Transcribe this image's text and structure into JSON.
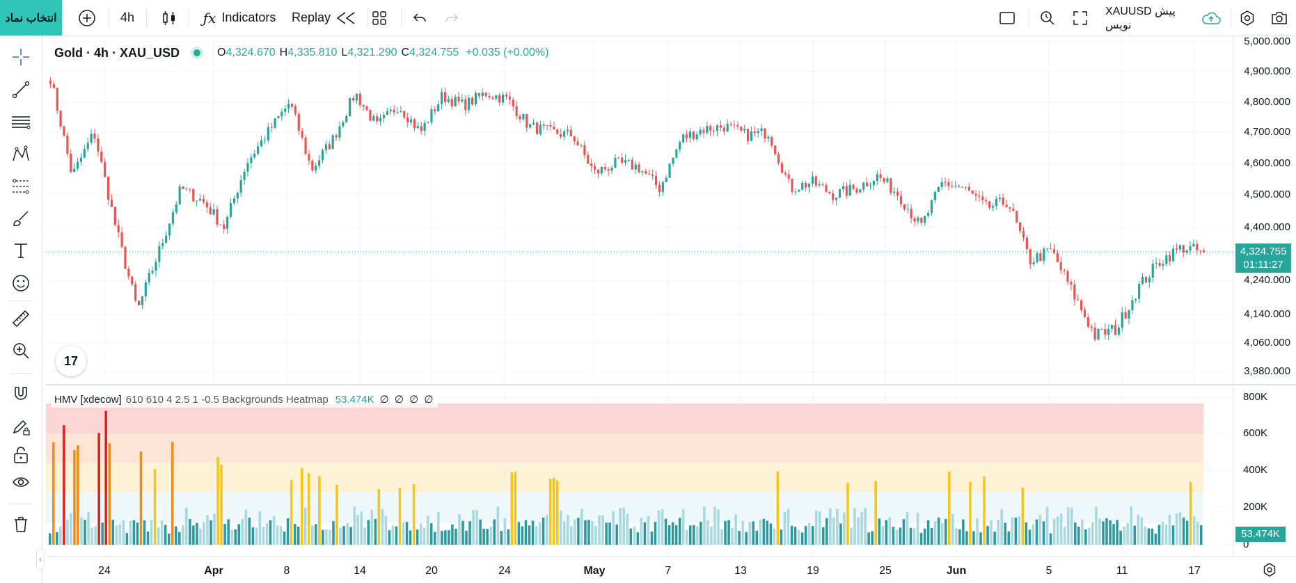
{
  "toolbar": {
    "symbol_search_label": "انتخاب نماد",
    "interval_label": "4h",
    "indicators_label": "Indicators",
    "replay_label": "Replay",
    "symbol_right_label": "XAUUSD پیش نویس"
  },
  "legend": {
    "title": "Gold · 4h · XAU_USD",
    "open_label": "O",
    "open": "4,324.670",
    "high_label": "H",
    "high": "4,335.810",
    "low_label": "L",
    "low": "4,321.290",
    "close_label": "C",
    "close": "4,324.755",
    "change": "+0.035 (+0.00%)"
  },
  "indicator": {
    "name": "HMV [xdecow]",
    "params": "610 610 4 2.5 1 -0.5 Backgrounds Heatmap",
    "value": "53.474K",
    "extra_values": "∅ ∅ ∅ ∅",
    "tag": "53.474K"
  },
  "price_axis": {
    "labels": [
      "5,000.000",
      "4,900.000",
      "4,800.000",
      "4,700.000",
      "4,600.000",
      "4,500.000",
      "4,400.000",
      "4,240.000",
      "4,140.000",
      "4,060.000",
      "3,980.000"
    ],
    "last_price": "4,324.755",
    "countdown": "01:11:27"
  },
  "volume_axis": {
    "labels": [
      "800K",
      "600K",
      "400K",
      "200K",
      "0"
    ]
  },
  "time_axis": {
    "labels": [
      {
        "text": "24",
        "bold": false
      },
      {
        "text": "Apr",
        "bold": true
      },
      {
        "text": "8",
        "bold": false
      },
      {
        "text": "14",
        "bold": false
      },
      {
        "text": "20",
        "bold": false
      },
      {
        "text": "24",
        "bold": false
      },
      {
        "text": "May",
        "bold": true
      },
      {
        "text": "7",
        "bold": false
      },
      {
        "text": "13",
        "bold": false
      },
      {
        "text": "19",
        "bold": false
      },
      {
        "text": "25",
        "bold": false
      },
      {
        "text": "Jun",
        "bold": true
      },
      {
        "text": "5",
        "bold": false
      },
      {
        "text": "11",
        "bold": false
      },
      {
        "text": "17",
        "bold": false
      }
    ]
  },
  "logo_text": "17",
  "colors": {
    "up": "#26a69a",
    "down": "#ef5350",
    "accent": "#2ec4b6",
    "heat_extreme": "#fcd5d5",
    "heat_high": "#fde4d4",
    "heat_medium": "#fdf1d6",
    "heat_normal": "#eef7fa",
    "vol_low": "#a8d8e0",
    "vol_normal": "#2a9aa0",
    "vol_medium": "#f5c518",
    "vol_high": "#f08c1a",
    "vol_extreme": "#e02020"
  },
  "chart_data": [
    {
      "type": "candlestick",
      "title": "Gold · 4h · XAU_USD",
      "x_ticks": [
        "24",
        "Apr",
        "8",
        "14",
        "20",
        "24",
        "May",
        "7",
        "13",
        "19",
        "25",
        "Jun",
        "5",
        "11",
        "17"
      ],
      "y_axis_ticks": [
        5000,
        4900,
        4800,
        4700,
        4600,
        4500,
        4400,
        4240,
        4140,
        4060,
        3980
      ],
      "close_path_estimate": [
        {
          "x": "Mar 20",
          "close": 4880
        },
        {
          "x": "Mar 21",
          "close": 4560
        },
        {
          "x": "Mar 22",
          "close": 4700
        },
        {
          "x": "Mar 23",
          "close": 4400
        },
        {
          "x": "Mar 24",
          "close": 4150
        },
        {
          "x": "Mar 25",
          "close": 4330
        },
        {
          "x": "Mar 26",
          "close": 4520
        },
        {
          "x": "Mar 28",
          "close": 4480
        },
        {
          "x": "Mar 30",
          "close": 4400
        },
        {
          "x": "Mar 31",
          "close": 4600
        },
        {
          "x": "Apr 1",
          "close": 4700
        },
        {
          "x": "Apr 2",
          "close": 4800
        },
        {
          "x": "Apr 3",
          "close": 4580
        },
        {
          "x": "Apr 5",
          "close": 4680
        },
        {
          "x": "Apr 7",
          "close": 4830
        },
        {
          "x": "Apr 9",
          "close": 4720
        },
        {
          "x": "Apr 11",
          "close": 4790
        },
        {
          "x": "Apr 13",
          "close": 4700
        },
        {
          "x": "Apr 15",
          "close": 4820
        },
        {
          "x": "Apr 17",
          "close": 4790
        },
        {
          "x": "Apr 19",
          "close": 4830
        },
        {
          "x": "Apr 21",
          "close": 4810
        },
        {
          "x": "Apr 23",
          "close": 4720
        },
        {
          "x": "Apr 25",
          "close": 4700
        },
        {
          "x": "Apr 27",
          "close": 4690
        },
        {
          "x": "Apr 29",
          "close": 4570
        },
        {
          "x": "May 1",
          "close": 4600
        },
        {
          "x": "May 3",
          "close": 4590
        },
        {
          "x": "May 5",
          "close": 4520
        },
        {
          "x": "May 7",
          "close": 4680
        },
        {
          "x": "May 9",
          "close": 4710
        },
        {
          "x": "May 11",
          "close": 4720
        },
        {
          "x": "May 13",
          "close": 4690
        },
        {
          "x": "May 15",
          "close": 4700
        },
        {
          "x": "May 17",
          "close": 4520
        },
        {
          "x": "May 19",
          "close": 4540
        },
        {
          "x": "May 21",
          "close": 4500
        },
        {
          "x": "May 23",
          "close": 4520
        },
        {
          "x": "May 25",
          "close": 4560
        },
        {
          "x": "May 27",
          "close": 4500
        },
        {
          "x": "May 29",
          "close": 4400
        },
        {
          "x": "May 31",
          "close": 4540
        },
        {
          "x": "Jun 2",
          "close": 4520
        },
        {
          "x": "Jun 4",
          "close": 4460
        },
        {
          "x": "Jun 6",
          "close": 4480
        },
        {
          "x": "Jun 7",
          "close": 4300
        },
        {
          "x": "Jun 9",
          "close": 4330
        },
        {
          "x": "Jun 10",
          "close": 4200
        },
        {
          "x": "Jun 11",
          "close": 4080
        },
        {
          "x": "Jun 12",
          "close": 4100
        },
        {
          "x": "Jun 13",
          "close": 4220
        },
        {
          "x": "Jun 15",
          "close": 4300
        },
        {
          "x": "Jun 16",
          "close": 4340
        },
        {
          "x": "Jun 17",
          "close": 4324.755
        }
      ],
      "last": 4324.755
    },
    {
      "type": "bar",
      "title": "HMV [xdecow]",
      "y_axis_ticks": [
        "800K",
        "600K",
        "400K",
        "200K",
        "0"
      ],
      "last_value": "53.474K",
      "threshold_bands": [
        "extreme",
        "high",
        "medium",
        "normal"
      ]
    }
  ]
}
